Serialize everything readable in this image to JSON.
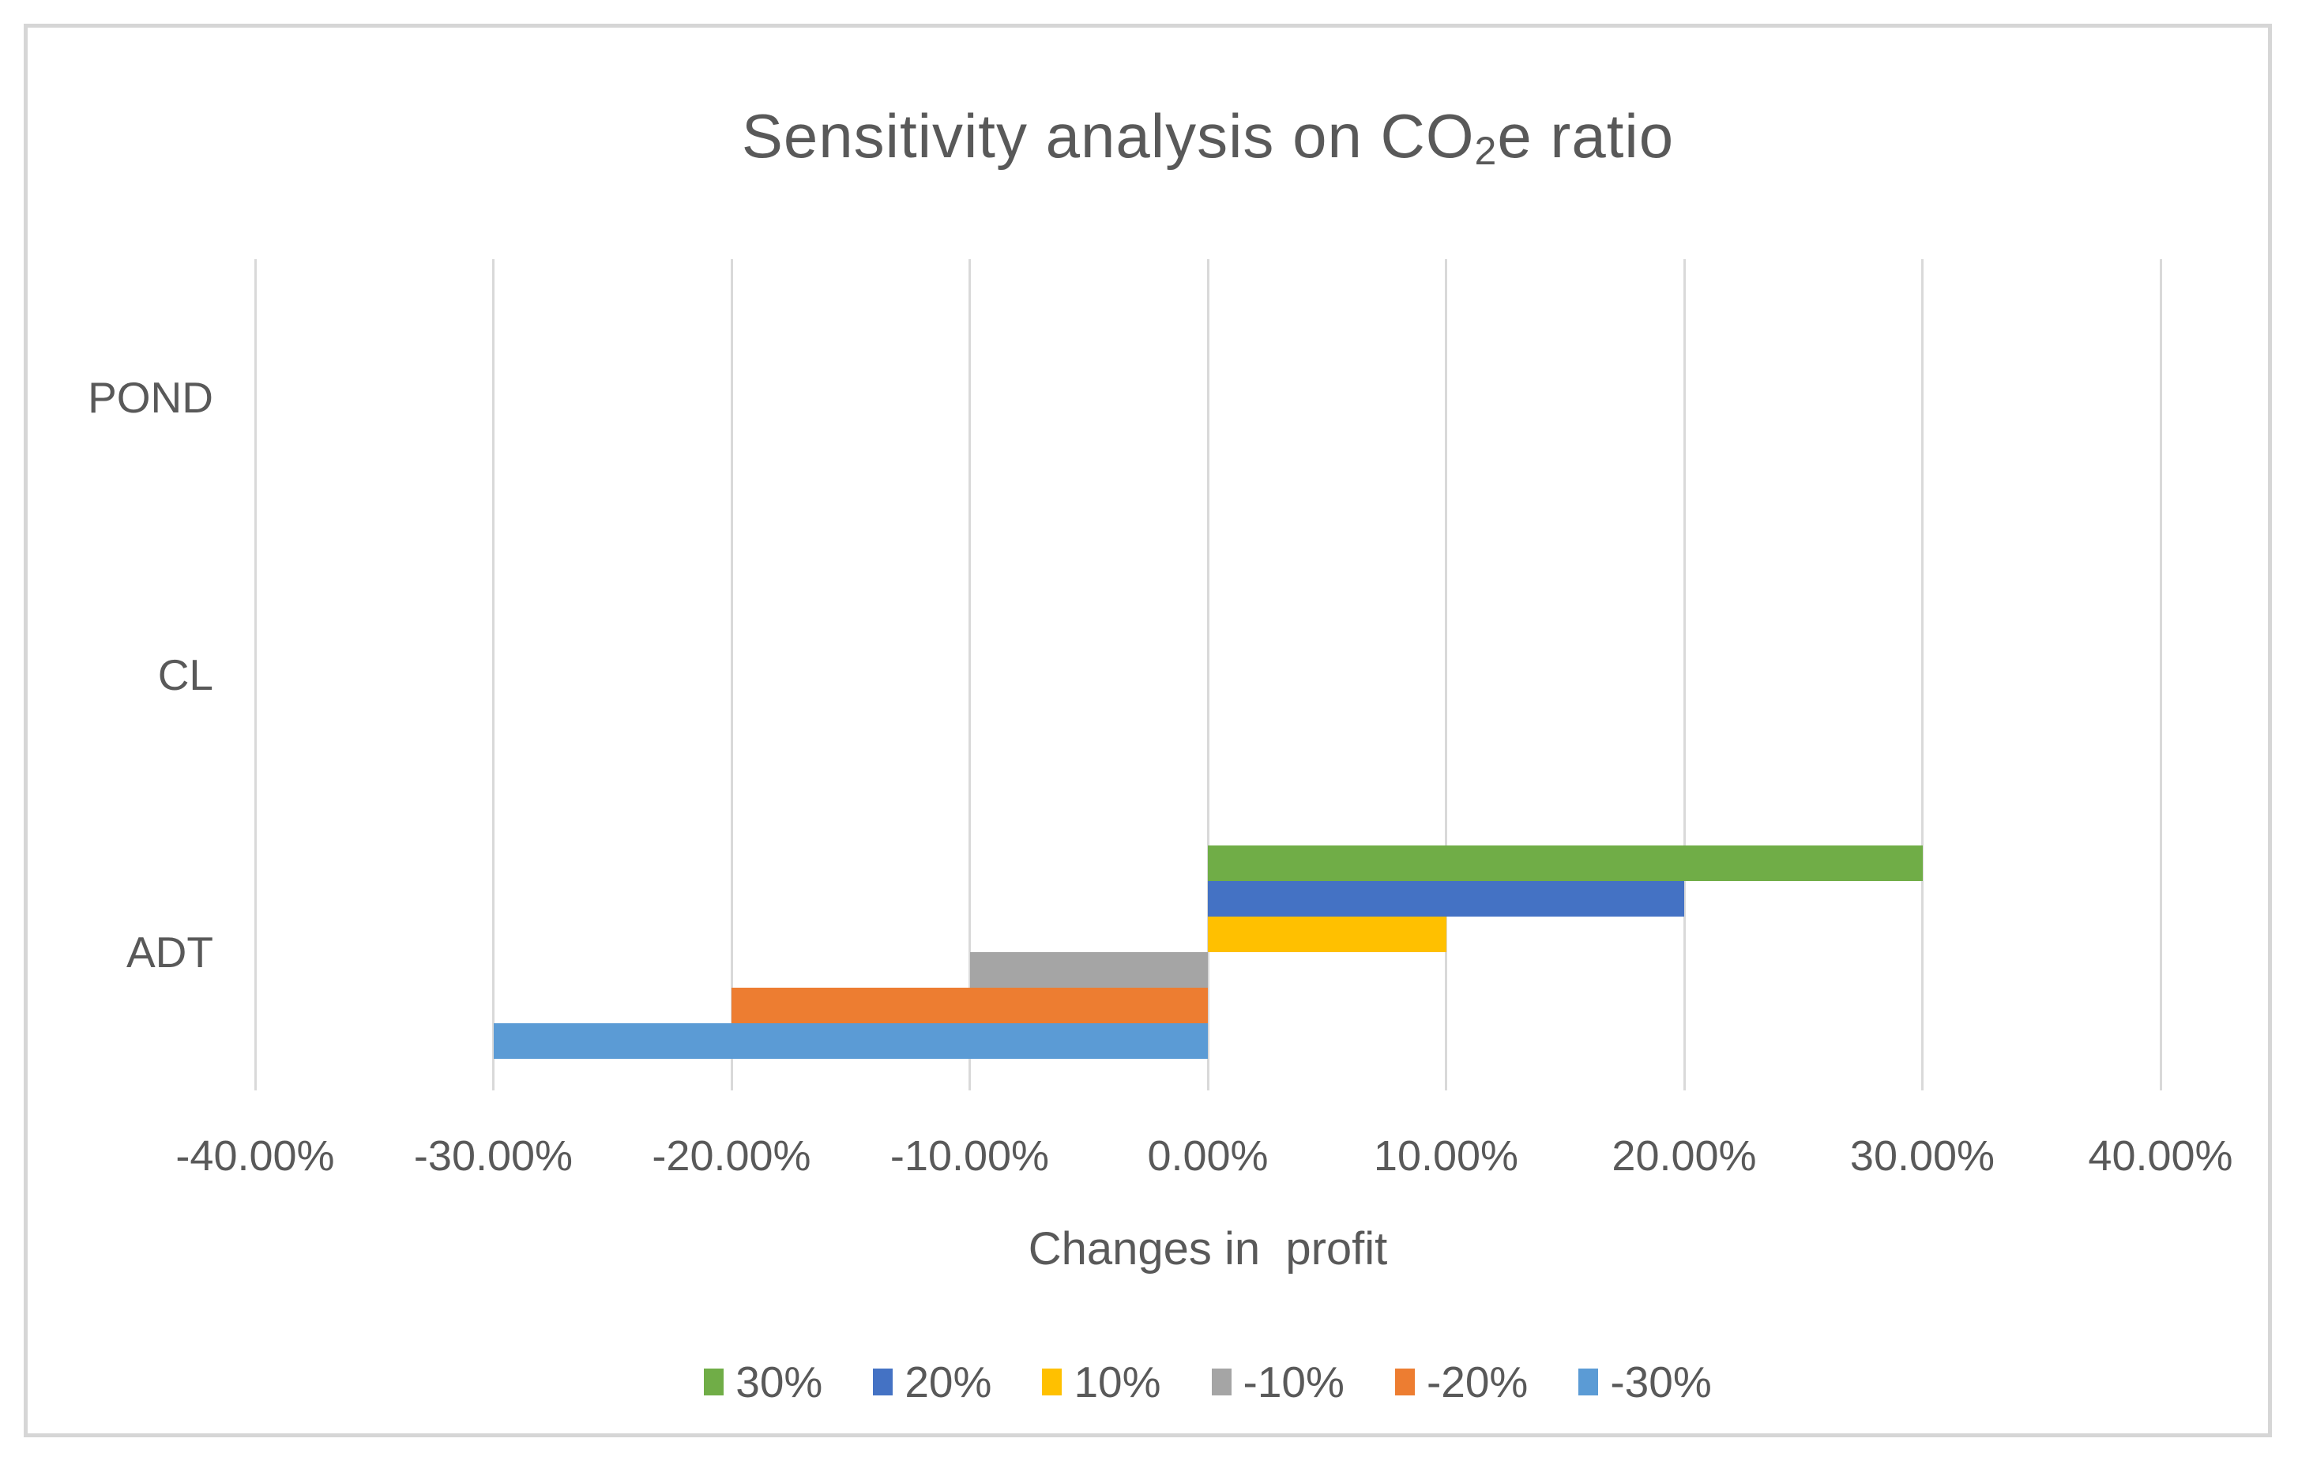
{
  "frame": {
    "border_color": "#d6d6d6",
    "background": "#ffffff"
  },
  "title": {
    "prefix": "Sensitivity analysis on CO",
    "subscript": "2",
    "suffix": "e ratio",
    "full_text": "Sensitivity analysis on CO2e ratio",
    "color": "#595959"
  },
  "chart_data": {
    "type": "bar",
    "orientation": "horizontal",
    "title": "Sensitivity analysis on CO2e ratio",
    "xlabel": "Changes in  profit",
    "ylabel": "",
    "categories": [
      "POND",
      "CL",
      "ADT"
    ],
    "series": [
      {
        "name": "30%",
        "color": "#70AD47",
        "values": [
          0,
          0,
          30
        ]
      },
      {
        "name": "20%",
        "color": "#4472C4",
        "values": [
          0,
          0,
          20
        ]
      },
      {
        "name": "10%",
        "color": "#FFC000",
        "values": [
          0,
          0,
          10
        ]
      },
      {
        "name": "-10%",
        "color": "#A5A5A5",
        "values": [
          0,
          0,
          -10
        ]
      },
      {
        "name": "-20%",
        "color": "#ED7D31",
        "values": [
          0,
          0,
          -20
        ]
      },
      {
        "name": "-30%",
        "color": "#5B9BD5",
        "values": [
          0,
          0,
          -30
        ]
      }
    ],
    "xlim": [
      -40,
      40
    ],
    "x_tick_values": [
      -40,
      -30,
      -20,
      -10,
      0,
      10,
      20,
      30,
      40
    ],
    "x_tick_labels": [
      "-40.00%",
      "-30.00%",
      "-20.00%",
      "-10.00%",
      "0.00%",
      "10.00%",
      "20.00%",
      "30.00%",
      "40.00%"
    ],
    "unit": "percent",
    "grid": "vertical",
    "gridline_color": "#d9d9d9",
    "text_color": "#595959",
    "legend_position": "bottom"
  }
}
